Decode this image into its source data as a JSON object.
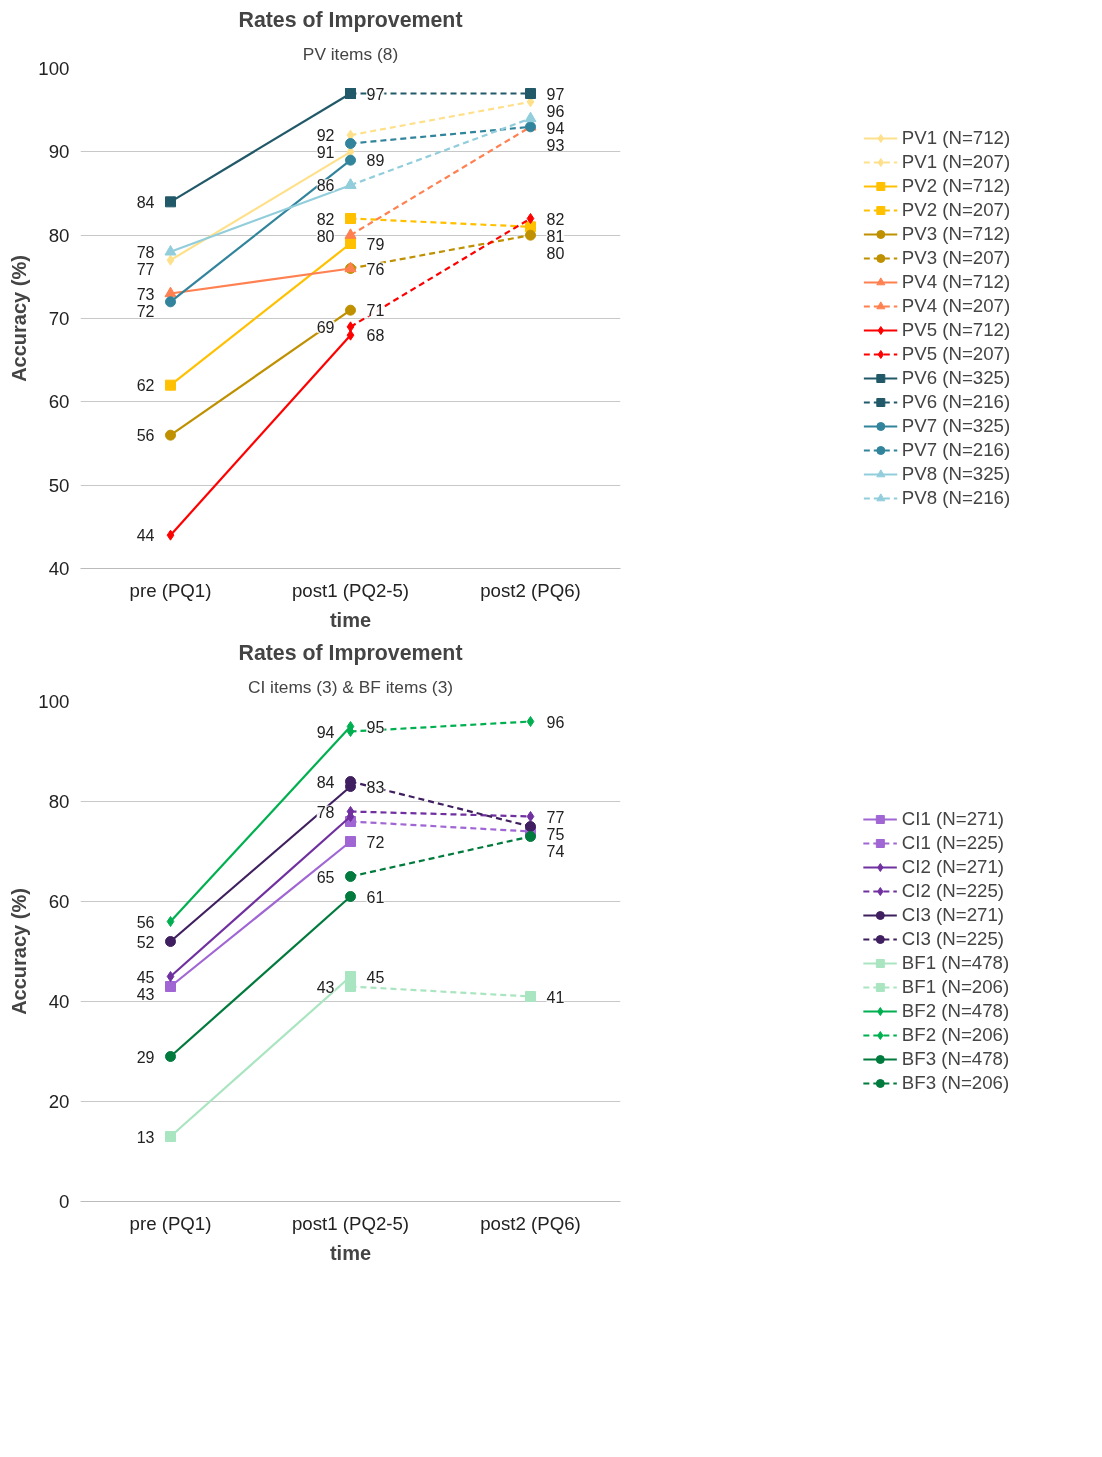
{
  "chart_data": [
    {
      "type": "line",
      "title": "Rates of Improvement",
      "subtitle": "PV items (8)",
      "xlabel": "time",
      "ylabel": "Accuracy (%)",
      "categories": [
        "pre (PQ1)",
        "post1 (PQ2-5)",
        "post2 (PQ6)"
      ],
      "ylim": [
        40,
        100
      ],
      "yticks": [
        40,
        50,
        60,
        70,
        80,
        90,
        100
      ],
      "grid": "y",
      "legend": "right",
      "series": [
        {
          "name": "PV1 (N=712)",
          "color": "#ffe08a",
          "marker": "diamond",
          "line_style": "solid",
          "values": [
            77,
            90,
            null
          ],
          "value_labels": [
            "77",
            null,
            null
          ]
        },
        {
          "name": "PV1 (N=207)",
          "color": "#ffe08a",
          "marker": "diamond",
          "line_style": "dashed",
          "values": [
            null,
            92,
            96
          ],
          "value_labels": [
            null,
            "92",
            "96"
          ]
        },
        {
          "name": "PV2 (N=712)",
          "color": "#ffc000",
          "marker": "square",
          "line_style": "solid",
          "values": [
            62,
            79,
            null
          ],
          "value_labels": [
            "62",
            "79",
            null
          ]
        },
        {
          "name": "PV2 (N=207)",
          "color": "#ffc000",
          "marker": "square",
          "line_style": "dashed",
          "values": [
            null,
            82,
            81
          ],
          "value_labels": [
            null,
            "82",
            "81"
          ]
        },
        {
          "name": "PV3 (N=712)",
          "color": "#bf9000",
          "marker": "circle",
          "line_style": "solid",
          "values": [
            56,
            71,
            null
          ],
          "value_labels": [
            "56",
            "71",
            null
          ]
        },
        {
          "name": "PV3 (N=207)",
          "color": "#bf9000",
          "marker": "circle",
          "line_style": "dashed",
          "values": [
            null,
            76,
            80
          ],
          "value_labels": [
            null,
            null,
            "80"
          ]
        },
        {
          "name": "PV4 (N=712)",
          "color": "#ff8050",
          "marker": "triangle",
          "line_style": "solid",
          "values": [
            73,
            76,
            null
          ],
          "value_labels": [
            "73",
            "76",
            null
          ]
        },
        {
          "name": "PV4 (N=207)",
          "color": "#ff8050",
          "marker": "triangle",
          "line_style": "dashed",
          "values": [
            null,
            80,
            93
          ],
          "value_labels": [
            null,
            "80",
            null
          ]
        },
        {
          "name": "PV5 (N=712)",
          "color": "#ff0000",
          "marker": "diamond",
          "line_style": "solid",
          "values": [
            44,
            68,
            null
          ],
          "value_labels": [
            "44",
            "68",
            null
          ]
        },
        {
          "name": "PV5 (N=207)",
          "color": "#ff0000",
          "marker": "diamond",
          "line_style": "dashed",
          "values": [
            null,
            69,
            82
          ],
          "value_labels": [
            null,
            "69",
            "82"
          ]
        },
        {
          "name": "PV6 (N=325)",
          "color": "#215968",
          "marker": "square",
          "line_style": "solid",
          "values": [
            84,
            97,
            null
          ],
          "value_labels": [
            "84",
            "97",
            null
          ]
        },
        {
          "name": "PV6 (N=216)",
          "color": "#215968",
          "marker": "square",
          "line_style": "dashed",
          "values": [
            null,
            97,
            97
          ],
          "value_labels": [
            null,
            null,
            "97"
          ]
        },
        {
          "name": "PV7 (N=325)",
          "color": "#31849b",
          "marker": "circle",
          "line_style": "solid",
          "values": [
            72,
            89,
            null
          ],
          "value_labels": [
            "72",
            "89",
            null
          ]
        },
        {
          "name": "PV7 (N=216)",
          "color": "#31849b",
          "marker": "circle",
          "line_style": "dashed",
          "values": [
            null,
            91,
            93
          ],
          "value_labels": [
            null,
            "91",
            "93"
          ]
        },
        {
          "name": "PV8 (N=325)",
          "color": "#92cddc",
          "marker": "triangle",
          "line_style": "solid",
          "values": [
            78,
            86,
            null
          ],
          "value_labels": [
            "78",
            null,
            null
          ]
        },
        {
          "name": "PV8 (N=216)",
          "color": "#92cddc",
          "marker": "triangle",
          "line_style": "dashed",
          "values": [
            null,
            86,
            94
          ],
          "value_labels": [
            null,
            "86",
            "94"
          ]
        }
      ]
    },
    {
      "type": "line",
      "title": "Rates of Improvement",
      "subtitle": "CI items (3) & BF items (3)",
      "xlabel": "time",
      "ylabel": "Accuracy (%)",
      "categories": [
        "pre (PQ1)",
        "post1 (PQ2-5)",
        "post2 (PQ6)"
      ],
      "ylim": [
        0,
        100
      ],
      "yticks": [
        0,
        20,
        40,
        60,
        80,
        100
      ],
      "grid": "y",
      "legend": "right",
      "series": [
        {
          "name": "CI1 (N=271)",
          "color": "#a066d3",
          "marker": "square",
          "line_style": "solid",
          "values": [
            43,
            72,
            null
          ],
          "value_labels": [
            "43",
            "72",
            null
          ]
        },
        {
          "name": "CI1 (N=225)",
          "color": "#a066d3",
          "marker": "square",
          "line_style": "dashed",
          "values": [
            null,
            76,
            74
          ],
          "value_labels": [
            null,
            null,
            "74"
          ]
        },
        {
          "name": "CI2 (N=271)",
          "color": "#7030a0",
          "marker": "diamond",
          "line_style": "solid",
          "values": [
            45,
            77,
            null
          ],
          "value_labels": [
            "45",
            null,
            null
          ]
        },
        {
          "name": "CI2 (N=225)",
          "color": "#7030a0",
          "marker": "diamond",
          "line_style": "dashed",
          "values": [
            null,
            78,
            77
          ],
          "value_labels": [
            null,
            "78",
            "77"
          ]
        },
        {
          "name": "CI3 (N=271)",
          "color": "#3f1f5f",
          "marker": "circle",
          "line_style": "solid",
          "values": [
            52,
            83,
            null
          ],
          "value_labels": [
            "52",
            "83",
            null
          ]
        },
        {
          "name": "CI3 (N=225)",
          "color": "#3f1f5f",
          "marker": "circle",
          "line_style": "dashed",
          "values": [
            null,
            84,
            75
          ],
          "value_labels": [
            null,
            "84",
            "75"
          ]
        },
        {
          "name": "BF1 (N=478)",
          "color": "#a9e5c0",
          "marker": "square",
          "line_style": "solid",
          "values": [
            13,
            45,
            null
          ],
          "value_labels": [
            "13",
            "45",
            null
          ]
        },
        {
          "name": "BF1 (N=206)",
          "color": "#a9e5c0",
          "marker": "square",
          "line_style": "dashed",
          "values": [
            null,
            43,
            41
          ],
          "value_labels": [
            null,
            "43",
            "41"
          ]
        },
        {
          "name": "BF2 (N=478)",
          "color": "#00b050",
          "marker": "diamond",
          "line_style": "solid",
          "values": [
            56,
            95,
            null
          ],
          "value_labels": [
            "56",
            "95",
            null
          ]
        },
        {
          "name": "BF2 (N=206)",
          "color": "#00b050",
          "marker": "diamond",
          "line_style": "dashed",
          "values": [
            null,
            94,
            96
          ],
          "value_labels": [
            null,
            "94",
            "96"
          ]
        },
        {
          "name": "BF3 (N=478)",
          "color": "#007a3d",
          "marker": "circle",
          "line_style": "solid",
          "values": [
            29,
            61,
            null
          ],
          "value_labels": [
            "29",
            "61",
            null
          ]
        },
        {
          "name": "BF3 (N=206)",
          "color": "#007a3d",
          "marker": "circle",
          "line_style": "dashed",
          "values": [
            null,
            65,
            73
          ],
          "value_labels": [
            null,
            "65",
            null
          ]
        }
      ]
    }
  ]
}
